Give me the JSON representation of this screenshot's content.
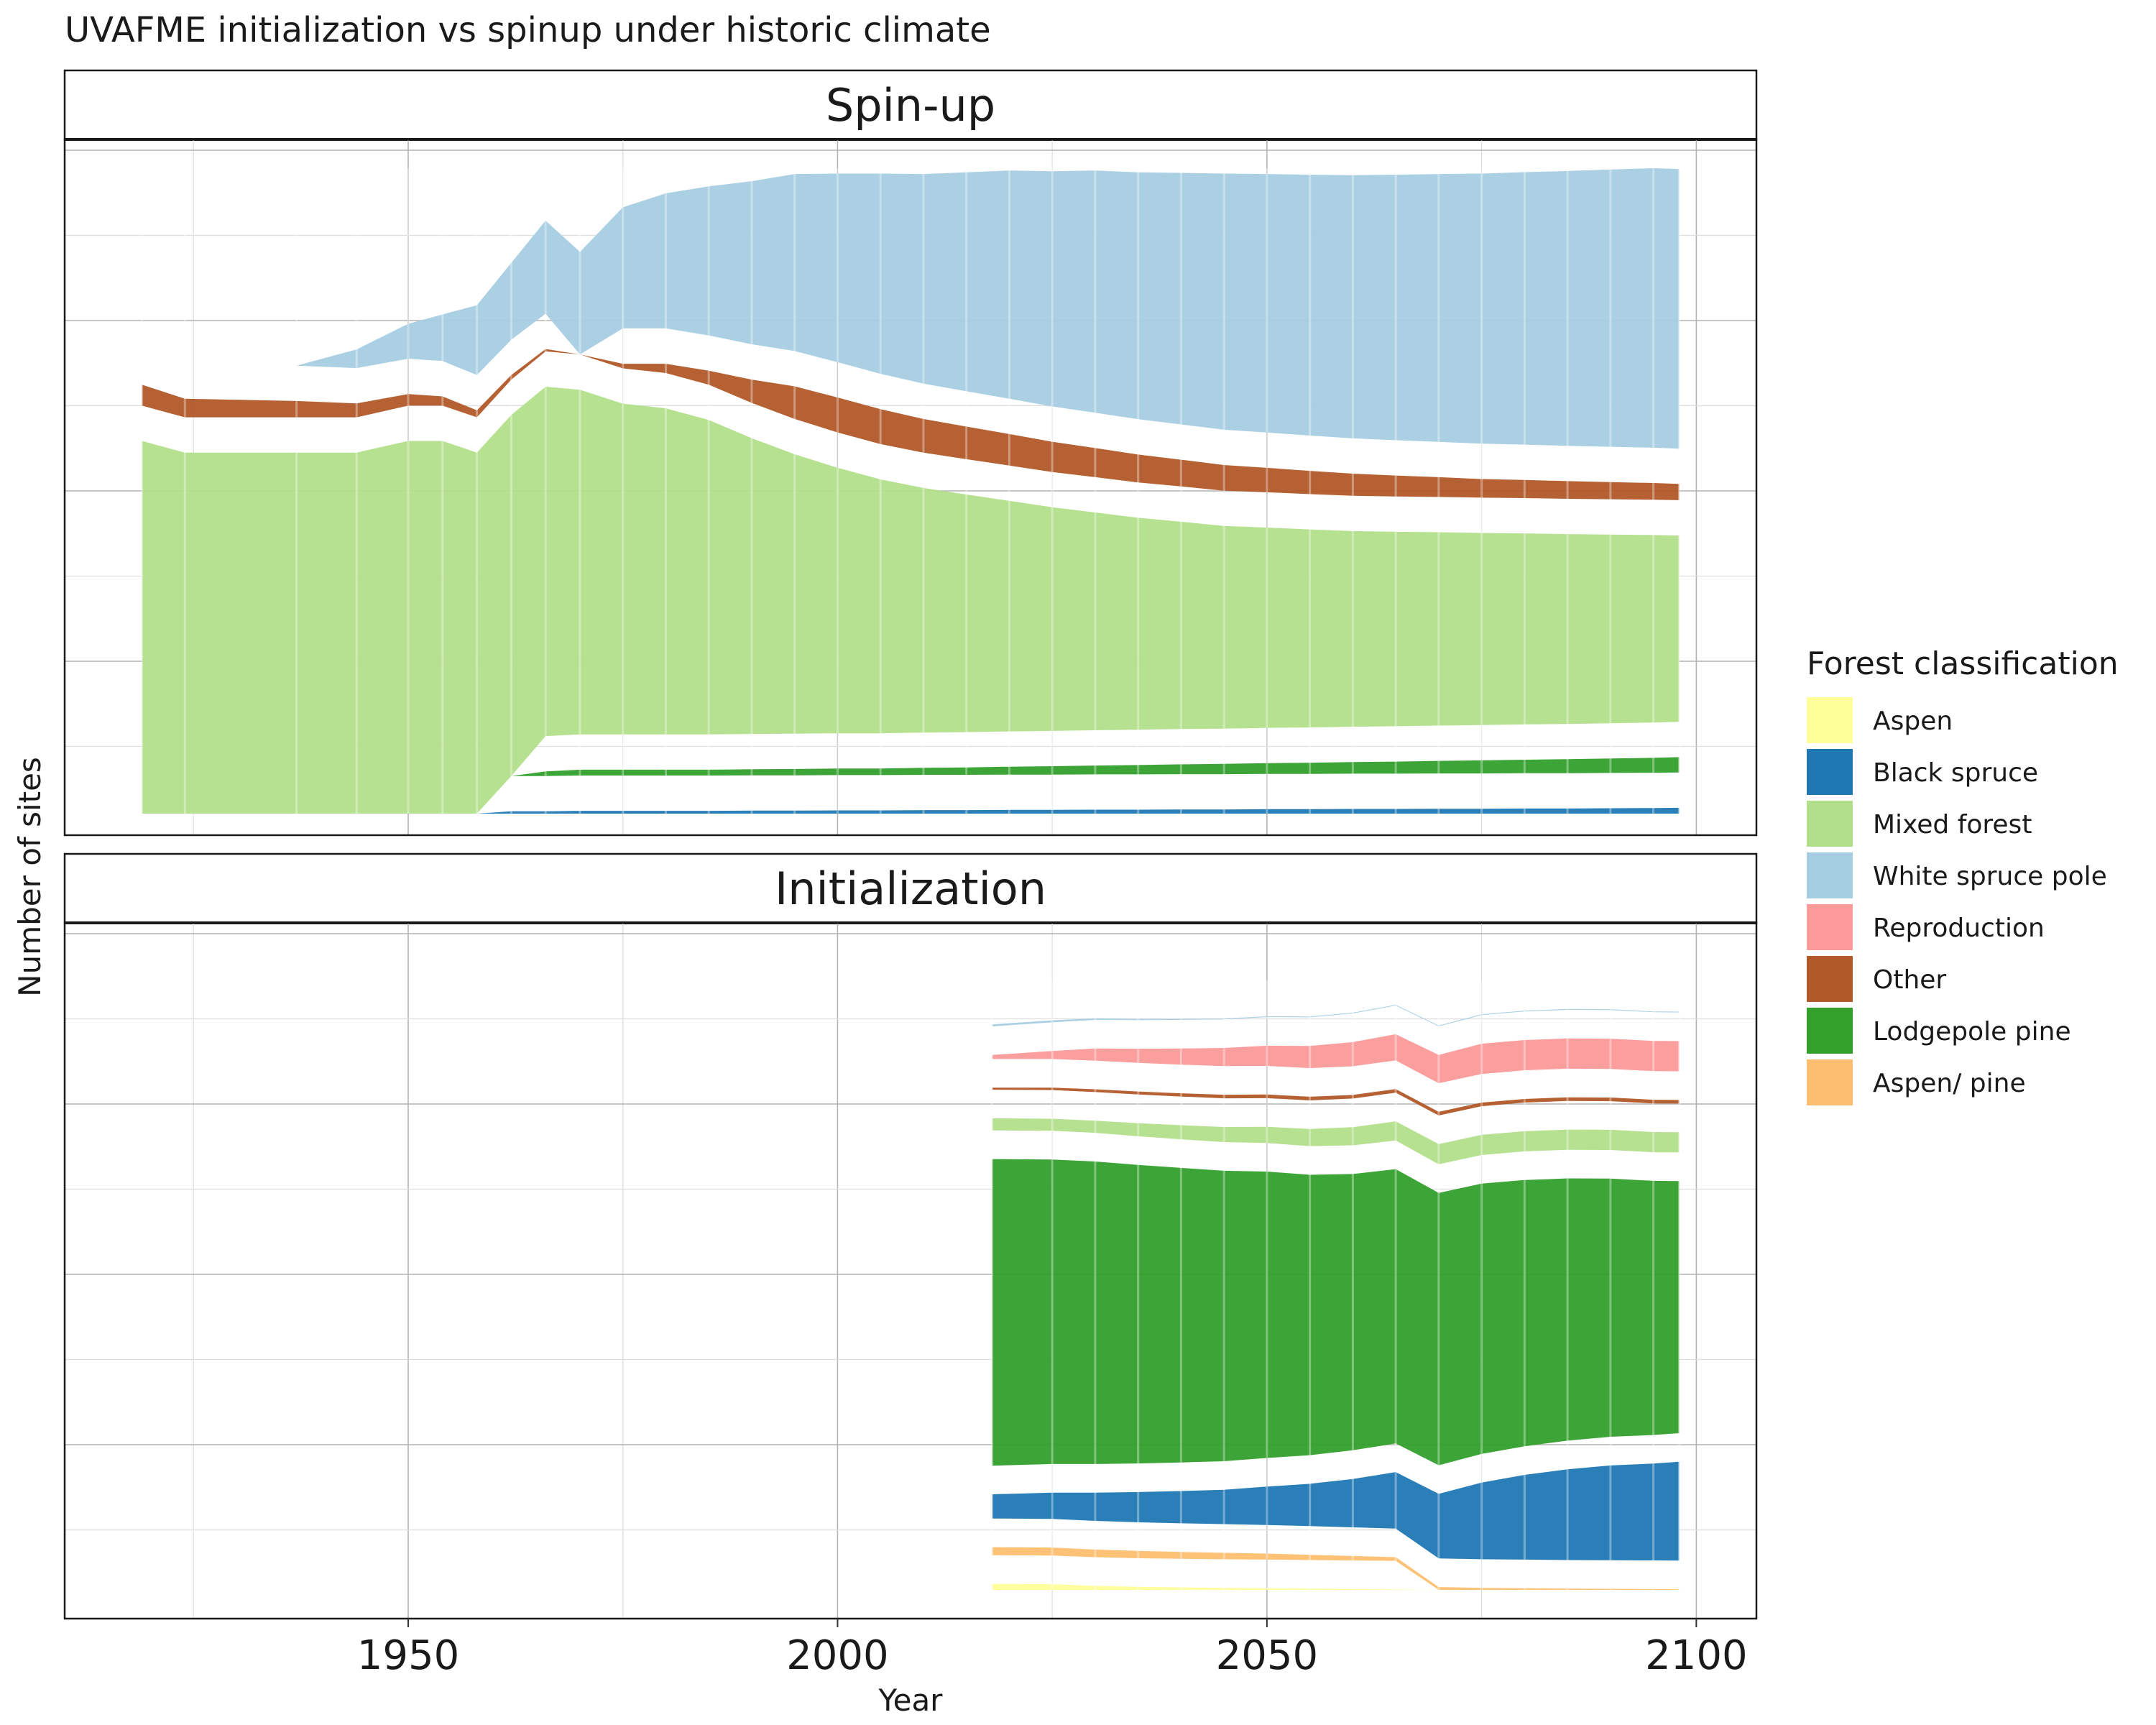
{
  "title": "UVAFME initialization vs spinup under historic climate",
  "chart_data": [
    {
      "type": "area",
      "panel": "Spin-up",
      "xlabel": "Year",
      "ylabel": "Number of sites",
      "xlim": [
        1910,
        2107
      ],
      "x_ticks": [
        1950,
        2000,
        2050,
        2100
      ],
      "y_tick_labels_shown": false,
      "grid": true,
      "x": [
        1919,
        1924,
        1937,
        1944,
        1950,
        1954,
        1958,
        1962,
        1966,
        1970,
        1975,
        1980,
        1985,
        1990,
        1995,
        2000,
        2005,
        2010,
        2015,
        2020,
        2025,
        2030,
        2035,
        2040,
        2045,
        2050,
        2055,
        2060,
        2065,
        2070,
        2075,
        2080,
        2085,
        2090,
        2095,
        2098
      ],
      "series": [
        {
          "name": "Mixed forest",
          "values": [
            1600,
            1550,
            1550,
            1550,
            1600,
            1600,
            1550,
            1550,
            1500,
            1480,
            1420,
            1400,
            1350,
            1270,
            1200,
            1140,
            1090,
            1050,
            1020,
            990,
            960,
            935,
            910,
            890,
            870,
            860,
            850,
            840,
            835,
            830,
            825,
            820,
            815,
            810,
            805,
            800
          ]
        },
        {
          "name": "Other",
          "values": [
            90,
            80,
            70,
            60,
            50,
            40,
            30,
            20,
            10,
            0,
            20,
            40,
            60,
            100,
            140,
            150,
            150,
            145,
            140,
            135,
            130,
            125,
            120,
            115,
            110,
            105,
            100,
            95,
            90,
            85,
            80,
            78,
            76,
            74,
            72,
            70
          ]
        },
        {
          "name": "White spruce pole",
          "values": [
            0,
            0,
            0,
            80,
            150,
            200,
            300,
            330,
            400,
            440,
            520,
            580,
            640,
            700,
            760,
            810,
            860,
            900,
            940,
            980,
            1010,
            1040,
            1060,
            1080,
            1100,
            1110,
            1120,
            1130,
            1140,
            1150,
            1160,
            1170,
            1180,
            1190,
            1200,
            1200
          ]
        },
        {
          "name": "Lodgepole pine",
          "values": [
            0,
            0,
            0,
            0,
            0,
            0,
            0,
            0,
            20,
            25,
            25,
            25,
            25,
            26,
            27,
            28,
            28,
            30,
            32,
            34,
            36,
            38,
            40,
            42,
            44,
            46,
            48,
            50,
            52,
            54,
            56,
            58,
            60,
            62,
            64,
            66
          ]
        },
        {
          "name": "Black spruce",
          "values": [
            0,
            0,
            0,
            0,
            0,
            0,
            0,
            10,
            10,
            12,
            12,
            12,
            12,
            13,
            13,
            14,
            14,
            15,
            15,
            16,
            16,
            17,
            17,
            18,
            18,
            19,
            19,
            20,
            20,
            21,
            21,
            22,
            22,
            23,
            24,
            25
          ]
        }
      ]
    },
    {
      "type": "area",
      "panel": "Initialization",
      "xlabel": "Year",
      "ylabel": "Number of sites",
      "xlim": [
        1910,
        2107
      ],
      "x_ticks": [
        1950,
        2000,
        2050,
        2100
      ],
      "y_tick_labels_shown": false,
      "grid": true,
      "x": [
        2018,
        2025,
        2030,
        2035,
        2040,
        2045,
        2050,
        2055,
        2060,
        2065,
        2070,
        2075,
        2080,
        2085,
        2090,
        2095,
        2098
      ],
      "series": [
        {
          "name": "Lodgepole pine",
          "values": [
            1520,
            1510,
            1500,
            1480,
            1460,
            1440,
            1420,
            1390,
            1370,
            1360,
            1350,
            1340,
            1320,
            1300,
            1280,
            1260,
            1250
          ]
        },
        {
          "name": "Black spruce",
          "values": [
            120,
            130,
            140,
            150,
            160,
            170,
            190,
            210,
            240,
            280,
            320,
            380,
            420,
            450,
            470,
            480,
            490
          ]
        },
        {
          "name": "Mixed forest",
          "values": [
            60,
            60,
            60,
            65,
            70,
            75,
            80,
            85,
            90,
            95,
            100,
            100,
            100,
            100,
            100,
            100,
            100
          ]
        },
        {
          "name": "Reproduction",
          "values": [
            20,
            40,
            60,
            70,
            80,
            90,
            100,
            110,
            120,
            130,
            140,
            150,
            150,
            150,
            150,
            150,
            150
          ]
        },
        {
          "name": "Aspen/ pine",
          "values": [
            40,
            40,
            38,
            36,
            34,
            32,
            30,
            26,
            22,
            18,
            14,
            10,
            8,
            6,
            5,
            4,
            3
          ]
        },
        {
          "name": "Aspen",
          "values": [
            30,
            28,
            20,
            15,
            12,
            10,
            8,
            6,
            4,
            2,
            0,
            0,
            0,
            0,
            0,
            0,
            0
          ]
        },
        {
          "name": "Other",
          "values": [
            10,
            12,
            14,
            15,
            16,
            18,
            18,
            18,
            18,
            18,
            18,
            18,
            18,
            18,
            18,
            18,
            18
          ]
        },
        {
          "name": "White spruce pole",
          "values": [
            10,
            10,
            8,
            6,
            5,
            4,
            4,
            4,
            4,
            4,
            4,
            4,
            4,
            4,
            4,
            4,
            4
          ]
        }
      ]
    }
  ],
  "legend": {
    "title": "Forest classification",
    "position": "right",
    "items": [
      {
        "label": "Aspen",
        "color": "#FFFF99"
      },
      {
        "label": "Black spruce",
        "color": "#1F78B4"
      },
      {
        "label": "Mixed forest",
        "color": "#B2DF8A"
      },
      {
        "label": "White spruce pole",
        "color": "#A6CEE3"
      },
      {
        "label": "Reproduction",
        "color": "#FB9A99"
      },
      {
        "label": "Other",
        "color": "#B15928"
      },
      {
        "label": "Lodgepole pine",
        "color": "#33A02C"
      },
      {
        "label": "Aspen/ pine",
        "color": "#FDBF6F"
      }
    ]
  }
}
